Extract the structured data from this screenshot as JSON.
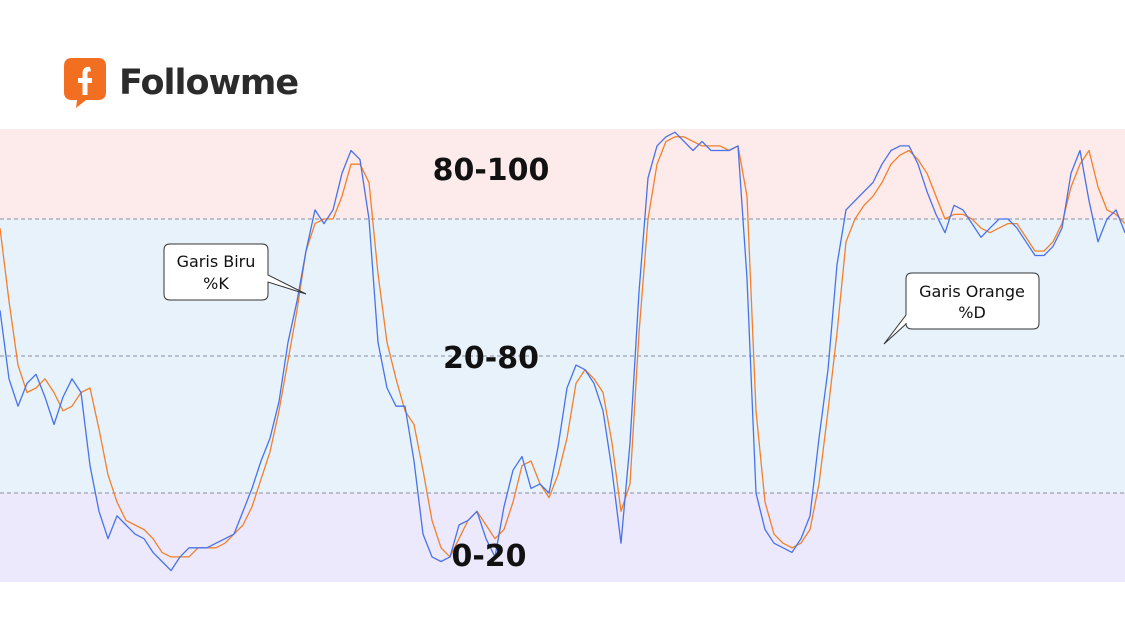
{
  "brand": {
    "name": "Followme",
    "accent": "#f26f21"
  },
  "chart_data": {
    "type": "line",
    "title": "",
    "xlabel": "",
    "ylabel": "",
    "ylim": [
      0,
      100
    ],
    "grid": false,
    "legend": "none",
    "bands": [
      {
        "label": "80-100",
        "from": 80,
        "to": 100,
        "color": "#fdeaea"
      },
      {
        "label": "20-80",
        "from": 20,
        "to": 80,
        "color": "#e7f2fb"
      },
      {
        "label": "0-20",
        "from": 0,
        "to": 20,
        "color": "#ebe9fb"
      }
    ],
    "reference_lines": [
      80,
      50,
      20
    ],
    "x": [
      0,
      1,
      2,
      3,
      4,
      5,
      6,
      7,
      8,
      9,
      10,
      11,
      12,
      13,
      14,
      15,
      16,
      17,
      18,
      19,
      20,
      21,
      22,
      23,
      24,
      25,
      26,
      27,
      28,
      29,
      30,
      31,
      32,
      33,
      34,
      35,
      36,
      37,
      38,
      39,
      40,
      41,
      42,
      43,
      44,
      45,
      46,
      47,
      48,
      49,
      50,
      51,
      52,
      53,
      54,
      55,
      56,
      57,
      58,
      59,
      60,
      61,
      62,
      63,
      64,
      65,
      66,
      67,
      68,
      69,
      70,
      71,
      72,
      73,
      74,
      75,
      76,
      77,
      78,
      79,
      80,
      81,
      82,
      83,
      84,
      85,
      86,
      87,
      88,
      89,
      90,
      91,
      92,
      93,
      94,
      95,
      96,
      97,
      98,
      99,
      100,
      101,
      102,
      103,
      104,
      105,
      106,
      107,
      108,
      109,
      110,
      111,
      112,
      113,
      114,
      115,
      116,
      117,
      118,
      119,
      120,
      121,
      122,
      123,
      124,
      125
    ],
    "series": [
      {
        "name": "%K",
        "color": "#4a72e8",
        "values": [
          60,
          45,
          39,
          44,
          46,
          41,
          35,
          41,
          45,
          42,
          26,
          16,
          10,
          15,
          13,
          11,
          10,
          7,
          5,
          3,
          6,
          8,
          8,
          8,
          9,
          10,
          11,
          16,
          21,
          27,
          32,
          40,
          53,
          62,
          73,
          82,
          79,
          82,
          90,
          95,
          93,
          80,
          53,
          43,
          39,
          39,
          27,
          11,
          6,
          5,
          6,
          13,
          14,
          16,
          10,
          6,
          17,
          25,
          28,
          21,
          22,
          20,
          30,
          43,
          48,
          47,
          44,
          38,
          25,
          9,
          31,
          64,
          89,
          96,
          98,
          99,
          97,
          95,
          97,
          95,
          95,
          95,
          96,
          67,
          20,
          12,
          9,
          8,
          7,
          10,
          15,
          32,
          47,
          70,
          82,
          84,
          86,
          88,
          92,
          95,
          96,
          96,
          92,
          86,
          81,
          77,
          83,
          82,
          79,
          76,
          78,
          80,
          80,
          78,
          75,
          72,
          72,
          74,
          78,
          90,
          95,
          84,
          75,
          80,
          82,
          77
        ]
      },
      {
        "name": "%D",
        "color": "#f2802c",
        "values": [
          78,
          62,
          48,
          42,
          43,
          45,
          42,
          38,
          39,
          42,
          43,
          34,
          24,
          18,
          14,
          13,
          12,
          10,
          7,
          6,
          6,
          6,
          8,
          8,
          8,
          9,
          11,
          13,
          17,
          23,
          29,
          38,
          49,
          60,
          73,
          79,
          80,
          80,
          85,
          92,
          92,
          88,
          68,
          53,
          45,
          38,
          35,
          25,
          14,
          8,
          6,
          10,
          14,
          16,
          13,
          10,
          12,
          18,
          26,
          27,
          22,
          19,
          24,
          32,
          44,
          47,
          45,
          42,
          31,
          16,
          22,
          55,
          80,
          92,
          97,
          98,
          98,
          97,
          96,
          96,
          96,
          95,
          96,
          85,
          38,
          18,
          11,
          9,
          8,
          9,
          12,
          22,
          38,
          55,
          75,
          80,
          83,
          85,
          88,
          92,
          94,
          95,
          93,
          90,
          85,
          80,
          81,
          81,
          80,
          78,
          77,
          78,
          79,
          79,
          76,
          73,
          73,
          75,
          79,
          87,
          92,
          95,
          87,
          82,
          81,
          79
        ]
      }
    ],
    "annotations": [
      {
        "label": "Garis Biru",
        "sublabel": "%K",
        "target_series": "%K"
      },
      {
        "label": "Garis Orange",
        "sublabel": "%D",
        "target_series": "%D"
      }
    ]
  }
}
